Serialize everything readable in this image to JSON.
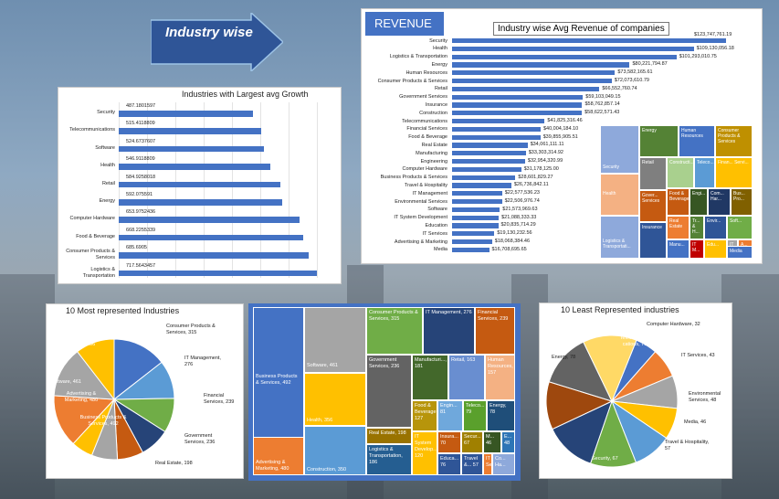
{
  "header": {
    "title": "Industry wise"
  },
  "revenue": {
    "banner": "REVENUE",
    "chart_title": "Industry wise Avg Revenue of companies"
  },
  "growth": {
    "chart_title": "Industries with Largest avg Growth"
  },
  "most": {
    "chart_title": "10 Most represented Industries"
  },
  "least": {
    "chart_title": "10 Least Represented industries"
  },
  "revenue_tree": [
    {
      "label": "Security",
      "color": "#8ea9db"
    },
    {
      "label": "Energy",
      "color": "#548235"
    },
    {
      "label": "Human Resources",
      "color": "#4472c4"
    },
    {
      "label": "Consumer Products & Services",
      "color": "#bf9000"
    },
    {
      "label": "Retail",
      "color": "#7f7f7f"
    },
    {
      "label": "Constructi...",
      "color": "#a9d08e"
    },
    {
      "label": "Teleco...",
      "color": "#5b9bd5"
    },
    {
      "label": "Finan... Servi...",
      "color": "#ffc000"
    },
    {
      "label": "Health",
      "color": "#f4b183"
    },
    {
      "label": "Food & Beverage",
      "color": "#c55a11"
    },
    {
      "label": "Engi...",
      "color": "#375623"
    },
    {
      "label": "Com... Har...",
      "color": "#203864"
    },
    {
      "label": "Bus... Pro...",
      "color": "#806000"
    },
    {
      "label": "Gover... Services",
      "color": "#c55a11"
    },
    {
      "label": "Real Estate",
      "color": "#ed7d31"
    },
    {
      "label": "Tr... & H...",
      "color": "#548235"
    },
    {
      "label": "Envir...",
      "color": "#2f5597"
    },
    {
      "label": "Soft...",
      "color": "#70ad47"
    },
    {
      "label": "Logistics & Transportati...",
      "color": "#8ea9db"
    },
    {
      "label": "Insurance",
      "color": "#2f5597"
    },
    {
      "label": "Manu...",
      "color": "#4472c4"
    },
    {
      "label": "IT M...",
      "color": "#c00000"
    },
    {
      "label": "Edu...",
      "color": "#ffc000"
    },
    {
      "label": "IT S...",
      "color": "#a5a5a5"
    },
    {
      "label": "A... &...",
      "color": "#ed7d31"
    },
    {
      "label": "Media",
      "color": "#4472c4"
    }
  ],
  "count_tree": [
    {
      "label": "Business Products & Services, 492",
      "color": "#4472c4"
    },
    {
      "label": "Advertising & Marketing, 480",
      "color": "#ed7d31"
    },
    {
      "label": "Software, 461",
      "color": "#a5a5a5"
    },
    {
      "label": "Health, 356",
      "color": "#ffc000"
    },
    {
      "label": "Construction, 350",
      "color": "#5b9bd5"
    },
    {
      "label": "Consumer Products & Services, 315",
      "color": "#70ad47"
    },
    {
      "label": "IT Management, 276",
      "color": "#264478"
    },
    {
      "label": "Financial Services, 239",
      "color": "#c55a11"
    },
    {
      "label": "Government Services, 236",
      "color": "#636363"
    },
    {
      "label": "Real Estate, 198",
      "color": "#997300"
    },
    {
      "label": "Logistics & Transportation, 186",
      "color": "#255e91"
    },
    {
      "label": "Manufacturi..., 181",
      "color": "#43682b"
    },
    {
      "label": "Retail, 163",
      "color": "#698ed0"
    },
    {
      "label": "Human Resources, 157",
      "color": "#f4b183"
    },
    {
      "label": "Food & Beverage, 127",
      "color": "#b7950b"
    },
    {
      "label": "Engin... 81",
      "color": "#6fa8dc"
    },
    {
      "label": "Teleco... 79",
      "color": "#5aa02c"
    },
    {
      "label": "Energy, 78",
      "color": "#1f4e79"
    },
    {
      "label": "IT System Develop... 120",
      "color": "#ffc000"
    },
    {
      "label": "Insura... 70",
      "color": "#c55a11"
    },
    {
      "label": "Secur... 67",
      "color": "#a08000"
    },
    {
      "label": "M... 46",
      "color": "#375623"
    },
    {
      "label": "E... 48",
      "color": "#2e75b6"
    },
    {
      "label": "Educa... 76",
      "color": "#2f5597"
    },
    {
      "label": "Travel &... 57",
      "color": "#2f5597"
    },
    {
      "label": "IT Se...",
      "color": "#ed7d31"
    },
    {
      "label": "Co... Ha...",
      "color": "#8ea9db"
    }
  ],
  "chart_data": [
    {
      "type": "bar",
      "orientation": "horizontal",
      "title": "Industry wise Avg Revenue of companies",
      "categories": [
        "Security",
        "Health",
        "Logistics & Transportation",
        "Energy",
        "Human Resources",
        "Consumer Products & Services",
        "Retail",
        "Government Services",
        "Insurance",
        "Construction",
        "Telecommunications",
        "Financial Services",
        "Food & Beverage",
        "Real Estate",
        "Manufacturing",
        "Engineering",
        "Computer Hardware",
        "Business Products & Services",
        "Travel & Hospitality",
        "IT Management",
        "Environmental Services",
        "Software",
        "IT System Development",
        "Education",
        "IT Services",
        "Advertising & Marketing",
        "Media"
      ],
      "values": [
        123747761.19,
        109130056.18,
        101293010.75,
        80221794.87,
        73582165.61,
        72073610.79,
        66552760.74,
        59103049.15,
        58762857.14,
        58622571.43,
        41825316.46,
        40004184.1,
        39855905.51,
        34061111.11,
        33303314.92,
        32954320.99,
        31178125.0,
        28601829.27,
        26736842.11,
        22577536.23,
        22506976.74,
        21573969.63,
        21088333.33,
        20835714.29,
        19130232.56,
        18068384.46,
        16708695.65
      ],
      "data_labels": [
        "$123,747,761.19",
        "$109,130,056.18",
        "$101,293,010.75",
        "$80,221,794.87",
        "$73,582,165.61",
        "$72,073,610.79",
        "$66,552,760.74",
        "$59,103,049.15",
        "$58,762,857.14",
        "$58,622,571.43",
        "$41,825,316.46",
        "$40,004,184.10",
        "$39,855,905.51",
        "$34,061,111.11",
        "$33,303,314.92",
        "$32,954,320.99",
        "$31,178,125.00",
        "$28,601,829.27",
        "$26,736,842.11",
        "$22,577,536.23",
        "$22,506,976.74",
        "$21,573,969.63",
        "$21,088,333.33",
        "$20,835,714.29",
        "$19,130,232.56",
        "$18,068,384.46",
        "$16,708,695.65"
      ],
      "xlim": [
        0,
        130000000
      ]
    },
    {
      "type": "bar",
      "orientation": "horizontal",
      "title": "Industries with Largest avg Growth",
      "categories": [
        "Security",
        "Telecommunications",
        "Software",
        "Health",
        "Retail",
        "Energy",
        "Computer Hardware",
        "Food & Beverage",
        "Consumer Products & Services",
        "Logistics & Transportation"
      ],
      "values": [
        487.1801597,
        515.4118809,
        524.6737607,
        546.9118809,
        584.9258018,
        592.075591,
        653.9752436,
        668.2255339,
        685.6905,
        717.5643457
      ],
      "data_labels": [
        "487.1801597",
        "515.4118809",
        "524.6737607",
        "546.9118809",
        "584.9258018",
        "592.075591",
        "653.9752436",
        "668.2255339",
        "685.6905",
        "717.5643457"
      ],
      "xlim": [
        0,
        760
      ]
    },
    {
      "type": "pie",
      "title": "10 Most represented Industries",
      "labels": [
        "Business Products & Services",
        "Construction",
        "Consumer Products & Services",
        "IT Management",
        "Financial Services",
        "Government Services",
        "Real Estate",
        "Advertising & Marketing",
        "Software",
        "Health"
      ],
      "values": [
        492,
        350,
        315,
        276,
        239,
        236,
        198,
        480,
        461,
        356
      ],
      "slice_labels": [
        "Business Products & Services, 492",
        "Construction, 350",
        "Consumer Products & Services, 315",
        "IT Management, 276",
        "Financial Services, 239",
        "Government Services, 236",
        "Real Estate, 198",
        "Advertising & Marketing, 480",
        "Software, 461",
        "Health, 356"
      ],
      "colors": [
        "#4472c4",
        "#5b9bd5",
        "#70ad47",
        "#264478",
        "#c55a11",
        "#a5a5a5",
        "#ffc000",
        "#ed7d31",
        "#a5a5a5",
        "#ffc000"
      ]
    },
    {
      "type": "pie",
      "title": "10 Least Represented industries",
      "labels": [
        "Computer Hardware",
        "IT Services",
        "Environmental Services",
        "Media",
        "Travel & Hospitality",
        "Security",
        "Education",
        "Insurance",
        "Energy",
        "Telecommunications"
      ],
      "values": [
        32,
        43,
        48,
        46,
        57,
        67,
        76,
        70,
        78,
        79
      ],
      "slice_labels": [
        "Computer Hardware, 32",
        "IT Services, 43",
        "Environmental Services, 48",
        "Media, 46",
        "Travel & Hospitality, 57",
        "Security, 67",
        "",
        "",
        "Energy, 78",
        "Telecommuni cations, 79"
      ],
      "colors": [
        "#4472c4",
        "#ed7d31",
        "#a5a5a5",
        "#ffc000",
        "#5b9bd5",
        "#70ad47",
        "#264478",
        "#9e480e",
        "#636363",
        "#ffd966"
      ]
    }
  ]
}
